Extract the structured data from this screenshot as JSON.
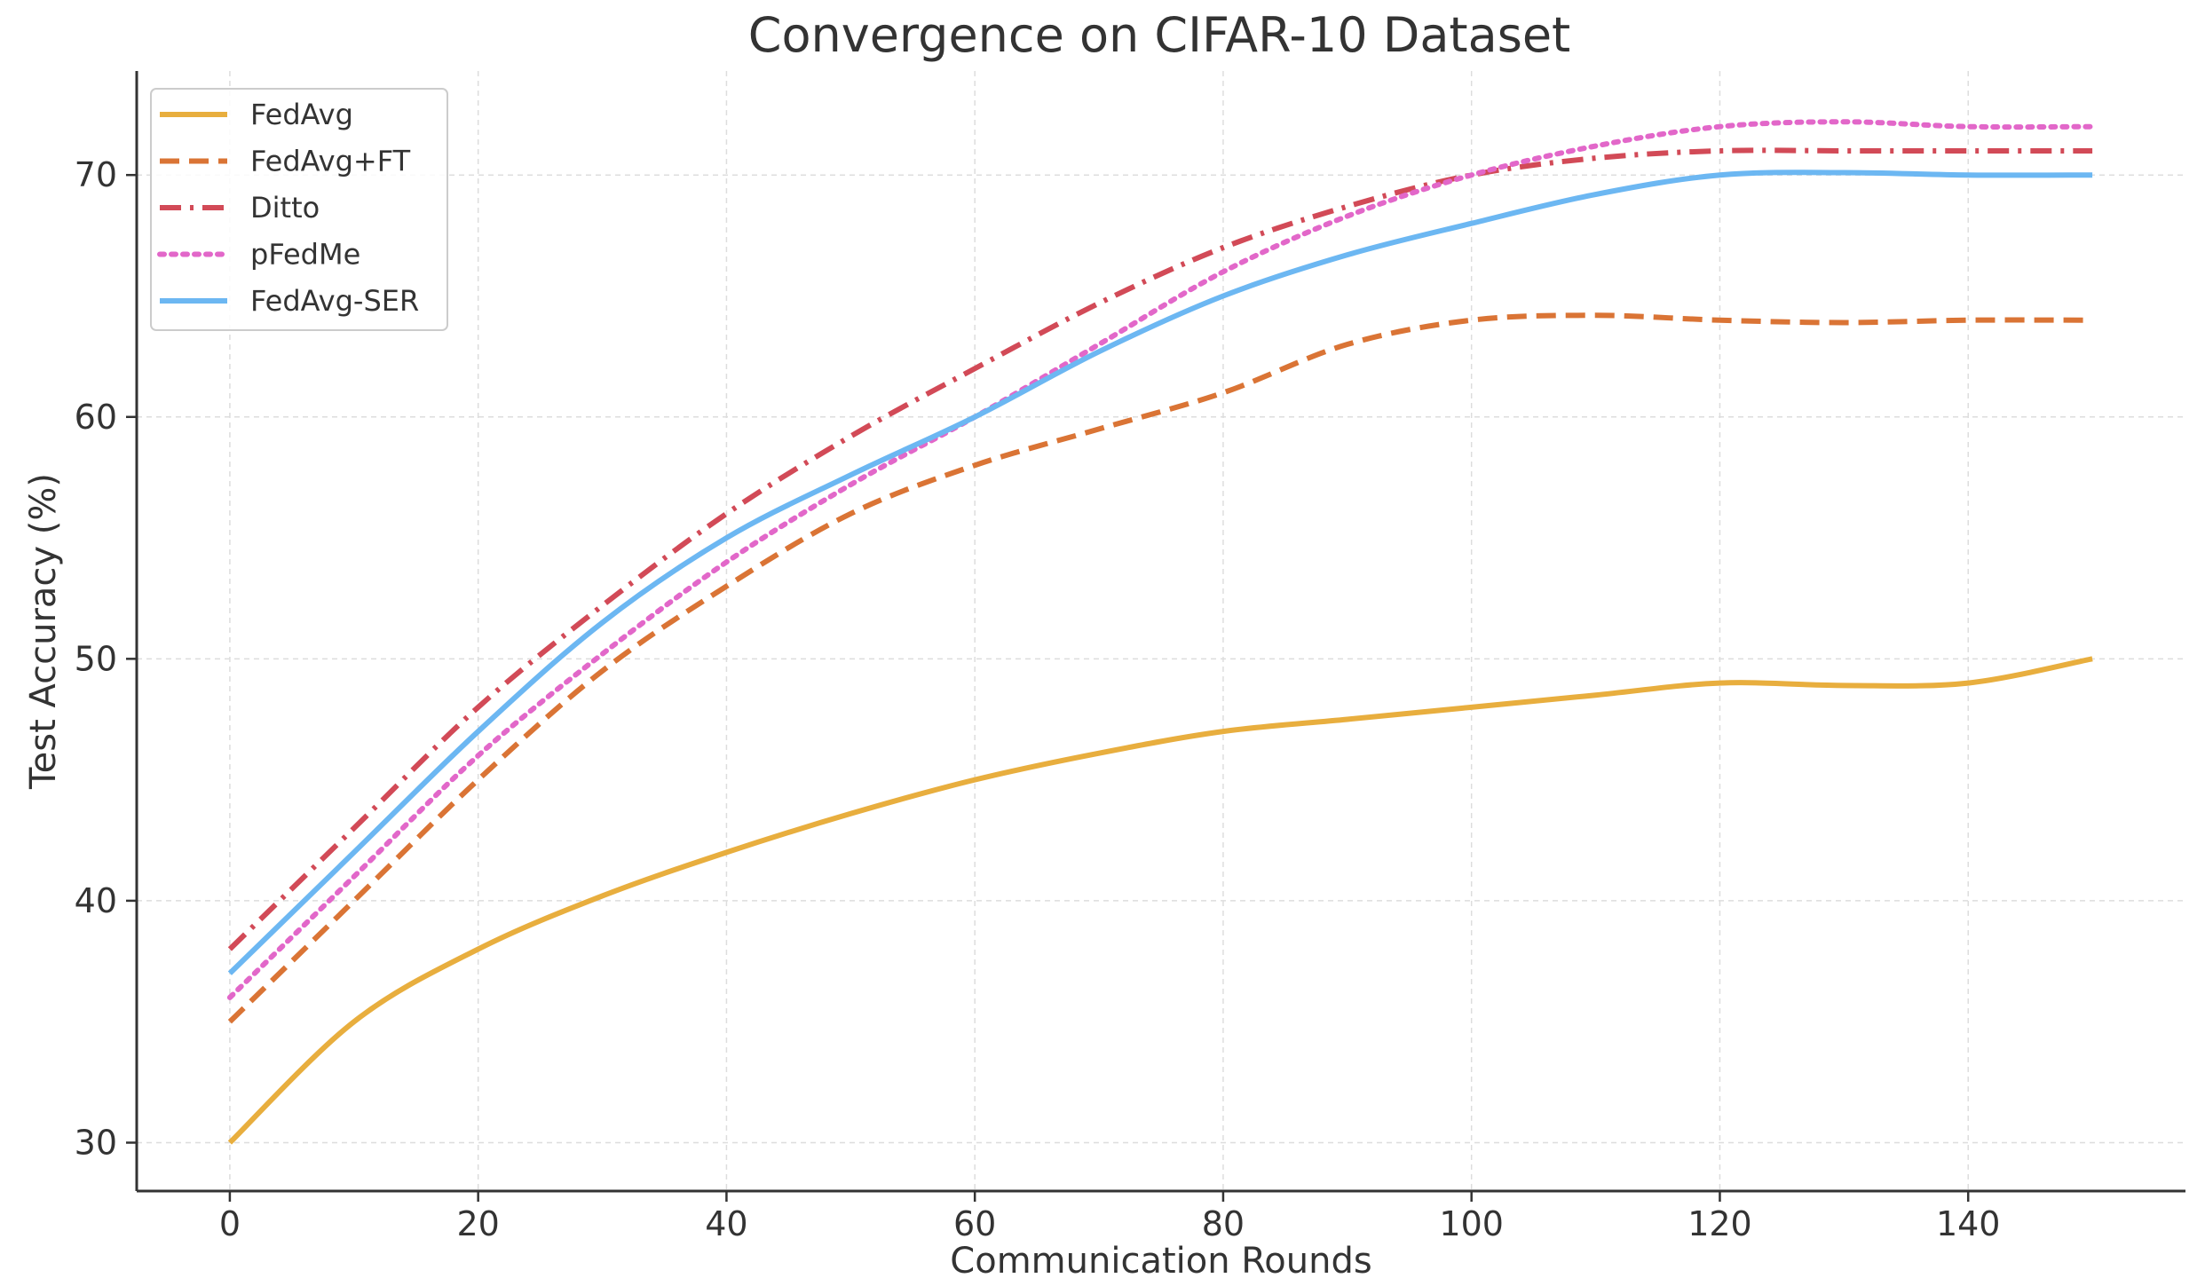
{
  "chart_data": {
    "type": "line",
    "title": "Convergence on CIFAR-10 Dataset",
    "xlabel": "Communication Rounds",
    "ylabel": "Test Accuracy (%)",
    "xlim": [
      -7.5,
      157.5
    ],
    "ylim": [
      28,
      74.3
    ],
    "xticks": [
      0,
      20,
      40,
      60,
      80,
      100,
      120,
      140
    ],
    "yticks": [
      30,
      40,
      50,
      60,
      70
    ],
    "grid": true,
    "legend_position": "top-left",
    "x": [
      0,
      10,
      20,
      30,
      40,
      50,
      60,
      70,
      80,
      90,
      100,
      110,
      120,
      130,
      140,
      150
    ],
    "series": [
      {
        "name": "FedAvg",
        "color": "#E8AE3E",
        "style": "solid",
        "values": [
          30,
          35,
          38,
          40.2,
          42,
          43.6,
          45,
          46.1,
          47,
          47.5,
          48,
          48.5,
          49,
          48.9,
          49,
          50
        ]
      },
      {
        "name": "FedAvg+FT",
        "color": "#DA7435",
        "style": "dashed",
        "values": [
          35,
          40,
          45,
          49.5,
          53,
          56,
          58,
          59.5,
          61,
          63,
          64,
          64.2,
          64,
          63.9,
          64,
          64
        ]
      },
      {
        "name": "Ditto",
        "color": "#D24A57",
        "style": "dashdot",
        "values": [
          38,
          43,
          48,
          52.2,
          56,
          59.2,
          62,
          64.7,
          67,
          68.7,
          70,
          70.7,
          71,
          71,
          71,
          71
        ]
      },
      {
        "name": "pFedMe",
        "color": "#E267C9",
        "style": "dotted",
        "values": [
          36,
          41,
          46,
          50.2,
          54,
          57.2,
          60,
          63,
          66,
          68.3,
          70,
          71.2,
          72,
          72.2,
          72,
          72
        ]
      },
      {
        "name": "FedAvg-SER",
        "color": "#6CB7F2",
        "style": "solid",
        "values": [
          37,
          42,
          47,
          51.5,
          55,
          57.6,
          60,
          62.7,
          65,
          66.7,
          68,
          69.2,
          70,
          70.1,
          70,
          70
        ]
      }
    ]
  }
}
